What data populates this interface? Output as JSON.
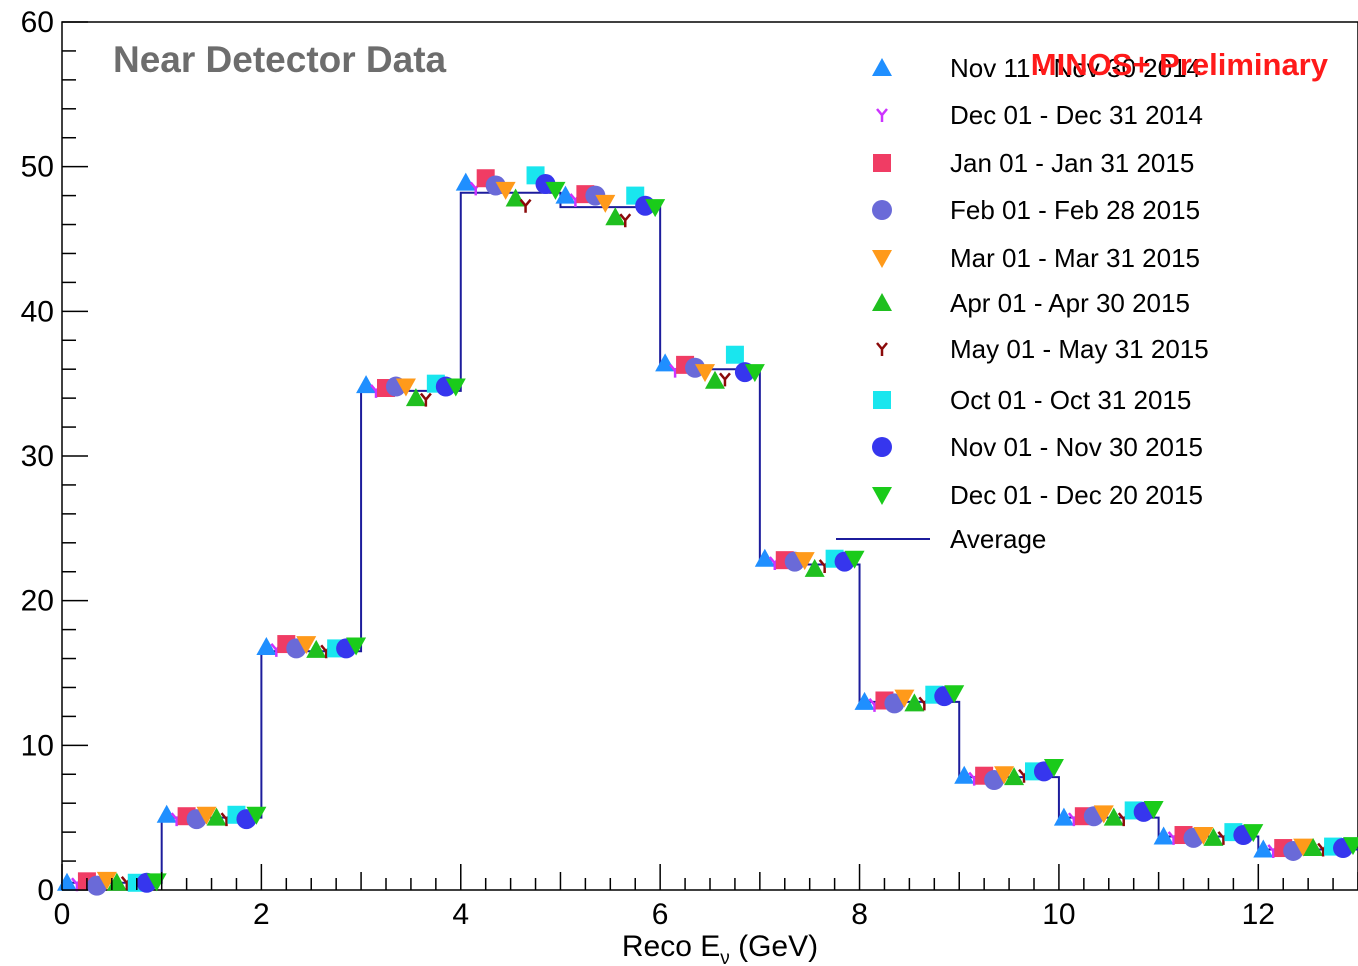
{
  "chart_data": {
    "type": "scatter",
    "title": "Near Detector Data",
    "annotation": "MINOS+ Preliminary",
    "xlabel": "Reco E",
    "xlabel_subscript": "ν",
    "xlabel_unit": "(GeV)",
    "xlim": [
      0,
      13
    ],
    "ylim": [
      0,
      60
    ],
    "x_ticks": [
      0,
      2,
      4,
      6,
      8,
      10,
      12
    ],
    "y_ticks": [
      0,
      10,
      20,
      30,
      40,
      50,
      60
    ],
    "legend_position": "top-right",
    "average": {
      "name": "Average",
      "color": "#1c1c9c",
      "bin_edges": [
        0,
        1,
        2,
        3,
        4,
        5,
        6,
        7,
        8,
        9,
        10,
        11,
        12,
        13
      ],
      "values": [
        0.5,
        5.0,
        16.5,
        34.5,
        48.2,
        47.2,
        36.0,
        22.5,
        13.0,
        7.8,
        5.0,
        3.7,
        2.8
      ]
    },
    "series": [
      {
        "name": "Nov 11 - Nov 30 2014",
        "marker": "triangle-up",
        "color": "#1f8fff",
        "values": [
          0.5,
          5.2,
          16.8,
          34.9,
          48.9,
          48.0,
          36.4,
          22.9,
          13.0,
          7.9,
          5.0,
          3.7,
          2.8
        ]
      },
      {
        "name": "Dec 01 - Dec 31 2014",
        "marker": "star",
        "color": "#cc33ff",
        "values": [
          0.4,
          4.9,
          16.6,
          34.5,
          48.5,
          47.7,
          35.9,
          22.6,
          12.8,
          7.7,
          4.9,
          3.6,
          2.7
        ]
      },
      {
        "name": "Jan 01 - Jan 31 2015",
        "marker": "square",
        "color": "#f03c64",
        "values": [
          0.6,
          5.1,
          17.0,
          34.7,
          49.2,
          48.1,
          36.3,
          22.8,
          13.1,
          7.9,
          5.1,
          3.8,
          2.9
        ]
      },
      {
        "name": "Feb 01 - Feb 28 2015",
        "marker": "circle",
        "color": "#6a6ad8",
        "values": [
          0.3,
          4.9,
          16.7,
          34.8,
          48.7,
          48.0,
          36.1,
          22.7,
          12.9,
          7.6,
          5.1,
          3.6,
          2.7
        ]
      },
      {
        "name": "Mar 01 - Mar 31 2015",
        "marker": "triangle-down",
        "color": "#ff9a1a",
        "values": [
          0.7,
          5.2,
          17.0,
          34.8,
          48.4,
          47.5,
          35.8,
          22.8,
          13.3,
          8.0,
          5.3,
          3.8,
          3.0
        ]
      },
      {
        "name": "Apr 01 - Apr 30 2015",
        "marker": "triangle-up",
        "color": "#1fbf1f",
        "values": [
          0.5,
          5.0,
          16.6,
          34.0,
          47.8,
          46.5,
          35.2,
          22.2,
          12.9,
          7.8,
          5.0,
          3.6,
          2.9
        ]
      },
      {
        "name": "May 01 - May 31 2015",
        "marker": "star",
        "color": "#8b0a0a",
        "values": [
          0.5,
          4.9,
          16.5,
          33.9,
          47.3,
          46.3,
          35.3,
          22.4,
          12.9,
          7.9,
          4.9,
          3.6,
          2.8
        ]
      },
      {
        "name": "Oct 01 - Oct 31 2015",
        "marker": "square",
        "color": "#19e6ee",
        "values": [
          0.5,
          5.2,
          16.7,
          35.0,
          49.4,
          48.0,
          37.0,
          22.9,
          13.5,
          8.2,
          5.5,
          4.0,
          3.0
        ]
      },
      {
        "name": "Nov 01 - Nov 30 2015",
        "marker": "circle",
        "color": "#3636ee",
        "values": [
          0.5,
          4.9,
          16.7,
          34.8,
          48.8,
          47.3,
          35.8,
          22.7,
          13.4,
          8.2,
          5.4,
          3.8,
          2.9
        ]
      },
      {
        "name": "Dec 01 - Dec 20 2015",
        "marker": "triangle-down",
        "color": "#1acb1a",
        "values": [
          0.6,
          5.2,
          16.9,
          34.8,
          48.4,
          47.2,
          35.8,
          22.9,
          13.6,
          8.5,
          5.6,
          4.0,
          3.1
        ]
      }
    ]
  }
}
